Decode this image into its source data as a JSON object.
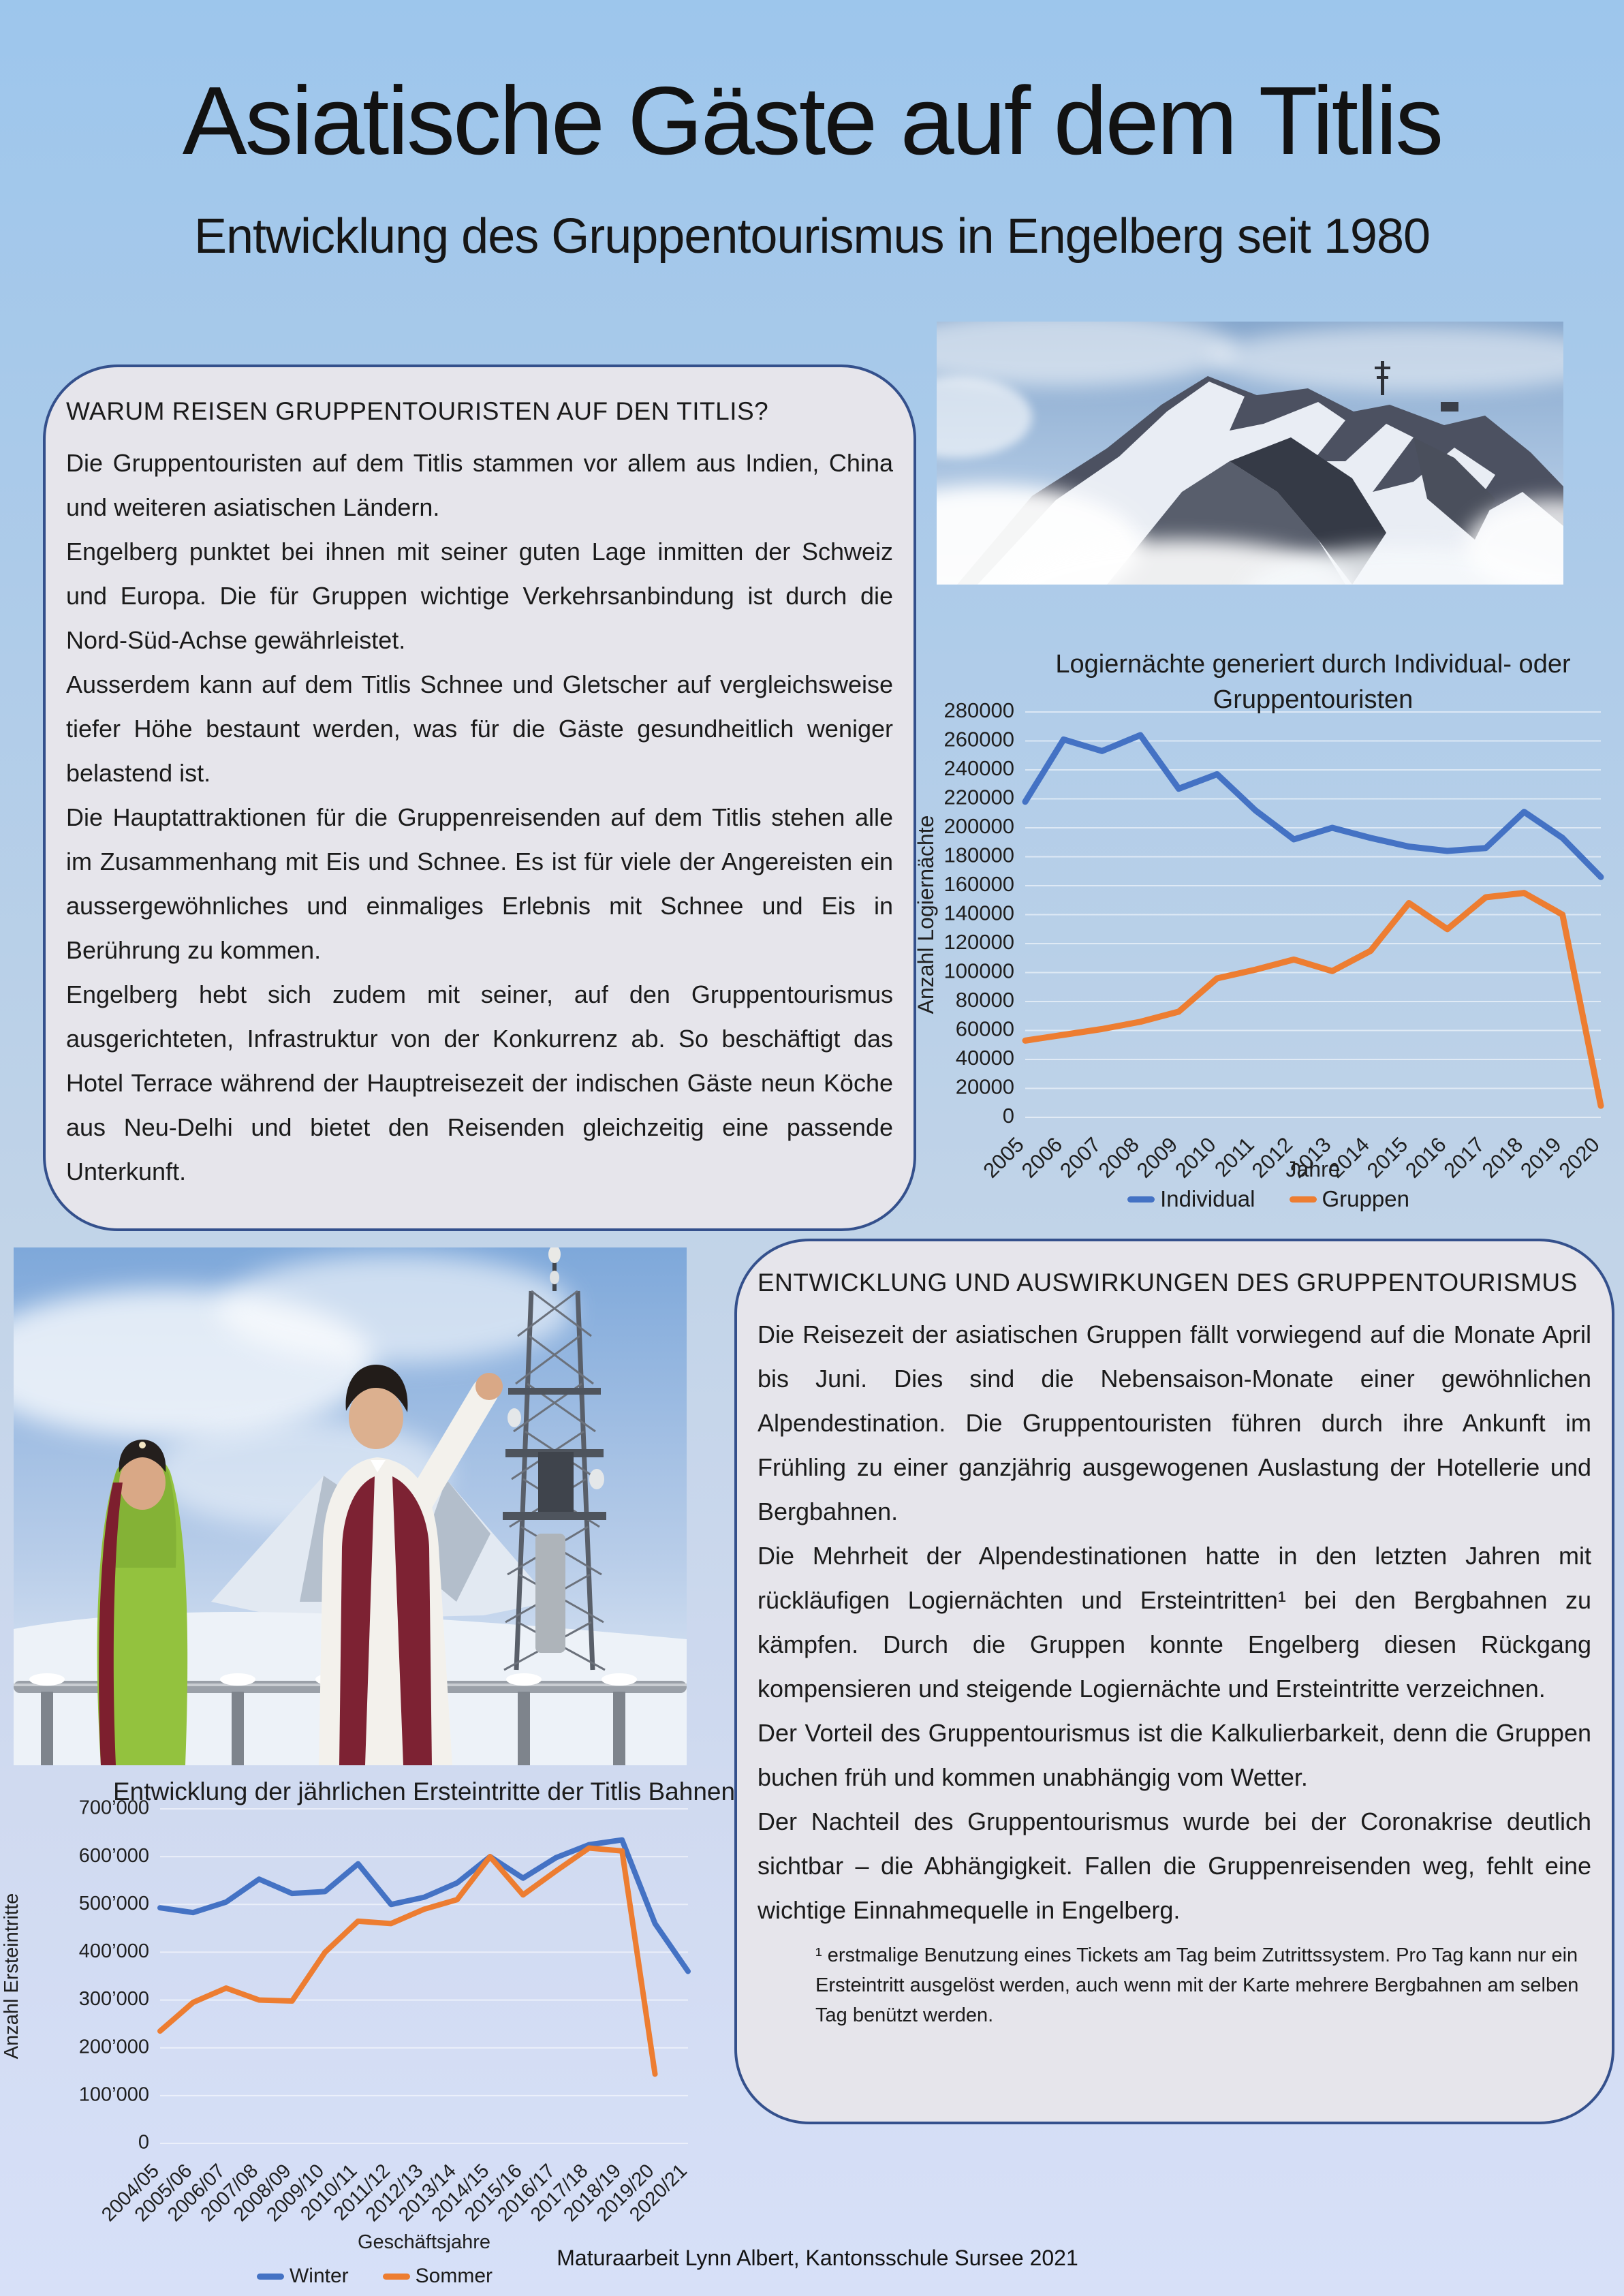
{
  "page": {
    "title": "Asiatische Gäste auf dem Titlis",
    "subtitle": "Entwicklung des Gruppentourismus in Engelberg seit 1980",
    "credit": "Maturaarbeit Lynn Albert, Kantonsschule Sursee 2021"
  },
  "left_box": {
    "heading": "WARUM REISEN GRUPPENTOURISTEN AUF DEN TITLIS?",
    "paragraphs": [
      "Die Gruppentouristen auf dem Titlis stammen vor allem aus Indien, China und weiteren asiatischen Ländern.",
      "Engelberg punktet bei ihnen mit seiner guten Lage inmitten der Schweiz und Europa. Die für Gruppen wichtige Verkehrsanbindung ist durch die Nord-Süd-Achse gewährleistet.",
      "Ausserdem kann auf dem Titlis Schnee und Gletscher auf vergleichsweise tiefer Höhe bestaunt werden, was für die Gäste gesundheitlich weniger belastend ist.",
      "Die Hauptattraktionen für die Gruppenreisenden auf dem Titlis stehen alle im Zusammenhang mit Eis und Schnee. Es ist für viele der Angereisten ein aussergewöhnliches und einmaliges Erlebnis mit Schnee und Eis in Berührung zu kommen.",
      "Engelberg hebt sich zudem mit seiner, auf den Gruppentourismus ausgerichteten, Infrastruktur von der Konkurrenz ab. So beschäftigt das Hotel Terrace während der Hauptreisezeit der indischen Gäste neun Köche aus Neu-Delhi und bietet den Reisenden gleichzeitig eine passende Unterkunft."
    ]
  },
  "right_box": {
    "heading": "ENTWICKLUNG UND AUSWIRKUNGEN DES GRUPPENTOURISMUS",
    "paragraphs": [
      "Die Reisezeit der asiatischen Gruppen fällt vorwiegend auf die Monate April bis Juni. Dies sind die Nebensaison-Monate einer gewöhnlichen Alpendestination. Die Gruppentouristen führen durch ihre Ankunft im Frühling zu einer ganzjährig ausgewogenen Auslastung der Hotellerie und Bergbahnen.",
      "Die Mehrheit der Alpendestinationen hatte in den letzten Jahren mit rückläufigen Logiernächten und Ersteintritten¹ bei den Bergbahnen zu kämpfen. Durch die Gruppen konnte Engelberg diesen Rückgang kompensieren und steigende Logiernächte und Ersteintritte verzeichnen.",
      "Der Vorteil des Gruppentourismus ist die Kalkulierbarkeit, denn die Gruppen buchen früh und kommen unabhängig vom Wetter.",
      "Der Nachteil des Gruppentourismus wurde bei der Coronakrise deutlich sichtbar – die Abhängigkeit. Fallen die Gruppenreisenden weg, fehlt eine wichtige Einnahmequelle in Engelberg."
    ],
    "footnote": "¹ erstmalige Benutzung eines Tickets am Tag beim Zutrittssystem. Pro Tag kann nur ein Ersteintritt ausgelöst werden, auch wenn mit der Karte mehrere Bergbahnen am selben Tag benützt werden."
  },
  "chart_data": [
    {
      "type": "line",
      "title": "Logiernächte generiert durch Individual- oder Gruppentouristen",
      "title_lines": [
        "Logiernächte generiert durch Individual- oder",
        "Gruppentouristen"
      ],
      "xlabel": "Jahre",
      "ylabel": "Anzahl Logiernächte",
      "categories": [
        "2005",
        "2006",
        "2007",
        "2008",
        "2009",
        "2010",
        "2011",
        "2012",
        "2013",
        "2014",
        "2015",
        "2016",
        "2017",
        "2018",
        "2019",
        "2020"
      ],
      "ylim": [
        0,
        280000
      ],
      "yticks": [
        0,
        20000,
        40000,
        60000,
        80000,
        100000,
        120000,
        140000,
        160000,
        180000,
        200000,
        220000,
        240000,
        260000,
        280000
      ],
      "ytick_labels": [
        "0",
        "20000",
        "40000",
        "60000",
        "80000",
        "100000",
        "120000",
        "140000",
        "160000",
        "180000",
        "200000",
        "220000",
        "240000",
        "260000",
        "280000"
      ],
      "grid": true,
      "legend_position": "bottom",
      "series": [
        {
          "name": "Individual",
          "color": "#4472c4",
          "values": [
            218000,
            261000,
            253000,
            264000,
            227000,
            237000,
            212000,
            192000,
            200000,
            193000,
            187000,
            184000,
            186000,
            211000,
            193000,
            166000
          ]
        },
        {
          "name": "Gruppen",
          "color": "#ed7d31",
          "values": [
            53000,
            57000,
            61000,
            66000,
            73000,
            96000,
            102000,
            109000,
            101000,
            115000,
            148000,
            130000,
            152000,
            155000,
            140000,
            8000
          ]
        }
      ]
    },
    {
      "type": "line",
      "title": "Entwicklung der jährlichen Ersteintritte der Titlis Bahnen",
      "title_lines": [
        "Entwicklung der jährlichen Ersteintritte der Titlis Bahnen"
      ],
      "xlabel": "Geschäftsjahre",
      "ylabel": "Anzahl Ersteintritte",
      "categories": [
        "2004/05",
        "2005/06",
        "2006/07",
        "2007/08",
        "2008/09",
        "2009/10",
        "2010/11",
        "2011/12",
        "2012/13",
        "2013/14",
        "2014/15",
        "2015/16",
        "2016/17",
        "2017/18",
        "2018/19",
        "2019/20",
        "2020/21"
      ],
      "ylim": [
        0,
        700000
      ],
      "yticks": [
        0,
        100000,
        200000,
        300000,
        400000,
        500000,
        600000,
        700000
      ],
      "ytick_labels": [
        "0",
        "100’000",
        "200’000",
        "300’000",
        "400’000",
        "500’000",
        "600’000",
        "700’000"
      ],
      "grid": true,
      "legend_position": "bottom",
      "series": [
        {
          "name": "Winter",
          "color": "#4472c4",
          "values": [
            493000,
            483000,
            505000,
            553000,
            523000,
            527000,
            585000,
            500000,
            515000,
            545000,
            600000,
            555000,
            598000,
            625000,
            635000,
            460000,
            360000
          ]
        },
        {
          "name": "Sommer",
          "color": "#ed7d31",
          "values": [
            235000,
            295000,
            325000,
            300000,
            298000,
            400000,
            465000,
            460000,
            490000,
            510000,
            600000,
            520000,
            570000,
            618000,
            612000,
            145000,
            null
          ]
        }
      ]
    }
  ]
}
